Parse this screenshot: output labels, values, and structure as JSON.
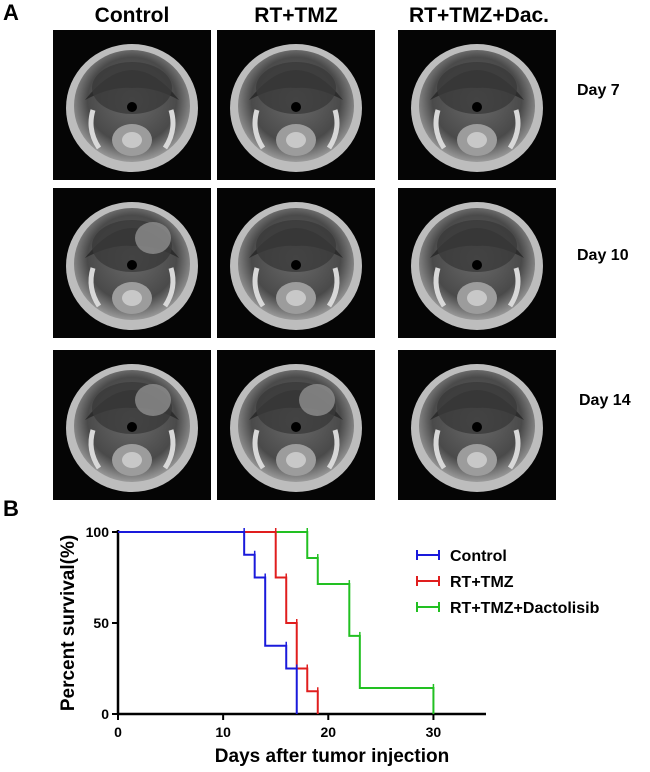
{
  "panel_a": {
    "label": "A",
    "columns": [
      "Control",
      "RT+TMZ",
      "RT+TMZ+Dac."
    ],
    "rows": [
      "Day 7",
      "Day 10",
      "Day 14"
    ],
    "image_description_icon": "mri-brain-scan-image"
  },
  "panel_b": {
    "label": "B"
  },
  "chart_data": {
    "type": "line",
    "subtype": "kaplan-meier-step",
    "title": "",
    "xlabel": "Days after tumor injection",
    "ylabel": "Percent survival(%)",
    "xlim": [
      0,
      35
    ],
    "ylim": [
      0,
      100
    ],
    "xticks": [
      0,
      10,
      20,
      30
    ],
    "yticks": [
      0,
      50,
      100
    ],
    "legend_position": "right",
    "series": [
      {
        "name": "Control",
        "color": "#1a1adb",
        "x": [
          0,
          12,
          13,
          14,
          16,
          17
        ],
        "y": [
          100,
          87.5,
          75,
          37.5,
          25,
          0
        ]
      },
      {
        "name": "RT+TMZ",
        "color": "#e01e1e",
        "x": [
          0,
          15,
          16,
          17,
          18,
          19
        ],
        "y": [
          100,
          75,
          50,
          25,
          12.5,
          0
        ]
      },
      {
        "name": "RT+TMZ+Dactolisib",
        "color": "#22c022",
        "x": [
          0,
          18,
          19,
          22,
          23,
          30
        ],
        "y": [
          100,
          85.7,
          71.4,
          42.9,
          14.3,
          0
        ]
      }
    ]
  }
}
